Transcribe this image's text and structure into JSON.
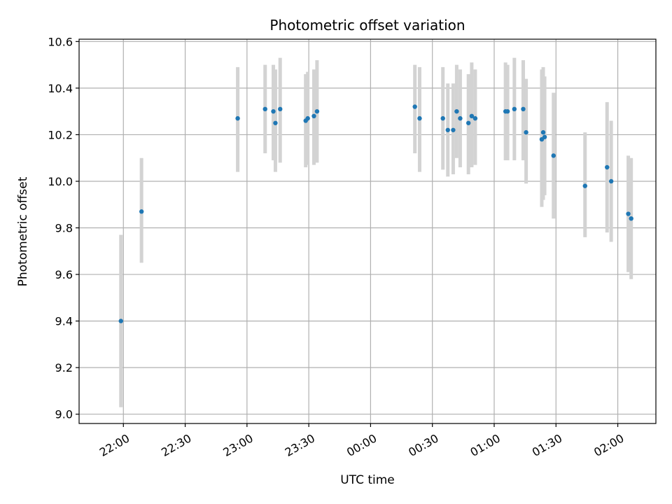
{
  "chart_data": {
    "type": "scatter",
    "title": "Photometric offset variation",
    "xlabel": "UTC time",
    "ylabel": "Photometric offset",
    "grid": true,
    "x_unit": "minutes since 21:30 UTC",
    "xlim": [
      8.5,
      288.5
    ],
    "ylim": [
      8.96,
      10.61
    ],
    "xticks": [
      {
        "x": 30,
        "label": "22:00"
      },
      {
        "x": 60,
        "label": "22:30"
      },
      {
        "x": 90,
        "label": "23:00"
      },
      {
        "x": 120,
        "label": "23:30"
      },
      {
        "x": 150,
        "label": "00:00"
      },
      {
        "x": 180,
        "label": "00:30"
      },
      {
        "x": 210,
        "label": "01:00"
      },
      {
        "x": 240,
        "label": "01:30"
      },
      {
        "x": 270,
        "label": "02:00"
      }
    ],
    "yticks": [
      {
        "y": 9.0,
        "label": "9.0"
      },
      {
        "y": 9.2,
        "label": "9.2"
      },
      {
        "y": 9.4,
        "label": "9.4"
      },
      {
        "y": 9.6,
        "label": "9.6"
      },
      {
        "y": 9.8,
        "label": "9.8"
      },
      {
        "y": 10.0,
        "label": "10.0"
      },
      {
        "y": 10.2,
        "label": "10.2"
      },
      {
        "y": 10.4,
        "label": "10.4"
      },
      {
        "y": 10.6,
        "label": "10.6"
      }
    ],
    "colors": {
      "point": "#1f77b4",
      "errorbar": "#d3d3d3",
      "grid": "#b0b0b0"
    },
    "points": [
      {
        "x": 28.8,
        "y": 9.4,
        "low": 9.03,
        "high": 9.77
      },
      {
        "x": 38.8,
        "y": 9.87,
        "low": 9.65,
        "high": 10.1
      },
      {
        "x": 85.5,
        "y": 10.27,
        "low": 10.04,
        "high": 10.49
      },
      {
        "x": 98.8,
        "y": 10.31,
        "low": 10.12,
        "high": 10.5
      },
      {
        "x": 102.8,
        "y": 10.3,
        "low": 10.09,
        "high": 10.5
      },
      {
        "x": 103.8,
        "y": 10.25,
        "low": 10.04,
        "high": 10.48
      },
      {
        "x": 106.1,
        "y": 10.31,
        "low": 10.08,
        "high": 10.53
      },
      {
        "x": 118.5,
        "y": 10.26,
        "low": 10.06,
        "high": 10.46
      },
      {
        "x": 119.5,
        "y": 10.27,
        "low": 10.07,
        "high": 10.47
      },
      {
        "x": 122.5,
        "y": 10.28,
        "low": 10.07,
        "high": 10.48
      },
      {
        "x": 124.0,
        "y": 10.3,
        "low": 10.08,
        "high": 10.52
      },
      {
        "x": 171.5,
        "y": 10.32,
        "low": 10.12,
        "high": 10.5
      },
      {
        "x": 173.8,
        "y": 10.27,
        "low": 10.04,
        "high": 10.49
      },
      {
        "x": 185.1,
        "y": 10.27,
        "low": 10.05,
        "high": 10.49
      },
      {
        "x": 187.5,
        "y": 10.22,
        "low": 10.02,
        "high": 10.42
      },
      {
        "x": 190.1,
        "y": 10.22,
        "low": 10.03,
        "high": 10.42
      },
      {
        "x": 191.8,
        "y": 10.3,
        "low": 10.1,
        "high": 10.5
      },
      {
        "x": 193.5,
        "y": 10.27,
        "low": 10.06,
        "high": 10.48
      },
      {
        "x": 197.5,
        "y": 10.25,
        "low": 10.03,
        "high": 10.46
      },
      {
        "x": 199.1,
        "y": 10.28,
        "low": 10.06,
        "high": 10.51
      },
      {
        "x": 200.8,
        "y": 10.27,
        "low": 10.07,
        "high": 10.48
      },
      {
        "x": 215.5,
        "y": 10.3,
        "low": 10.09,
        "high": 10.51
      },
      {
        "x": 216.5,
        "y": 10.3,
        "low": 10.09,
        "high": 10.5
      },
      {
        "x": 219.8,
        "y": 10.31,
        "low": 10.09,
        "high": 10.53
      },
      {
        "x": 224.1,
        "y": 10.31,
        "low": 10.09,
        "high": 10.52
      },
      {
        "x": 225.5,
        "y": 10.21,
        "low": 9.99,
        "high": 10.44
      },
      {
        "x": 233.1,
        "y": 10.18,
        "low": 9.89,
        "high": 10.48
      },
      {
        "x": 233.8,
        "y": 10.21,
        "low": 9.92,
        "high": 10.49
      },
      {
        "x": 234.5,
        "y": 10.19,
        "low": 9.94,
        "high": 10.45
      },
      {
        "x": 238.8,
        "y": 10.11,
        "low": 9.84,
        "high": 10.38
      },
      {
        "x": 254.1,
        "y": 9.98,
        "low": 9.76,
        "high": 10.21
      },
      {
        "x": 264.8,
        "y": 10.06,
        "low": 9.78,
        "high": 10.34
      },
      {
        "x": 266.8,
        "y": 10.0,
        "low": 9.74,
        "high": 10.26
      },
      {
        "x": 275.1,
        "y": 9.86,
        "low": 9.61,
        "high": 10.11
      },
      {
        "x": 276.5,
        "y": 9.84,
        "low": 9.58,
        "high": 10.1
      }
    ]
  }
}
